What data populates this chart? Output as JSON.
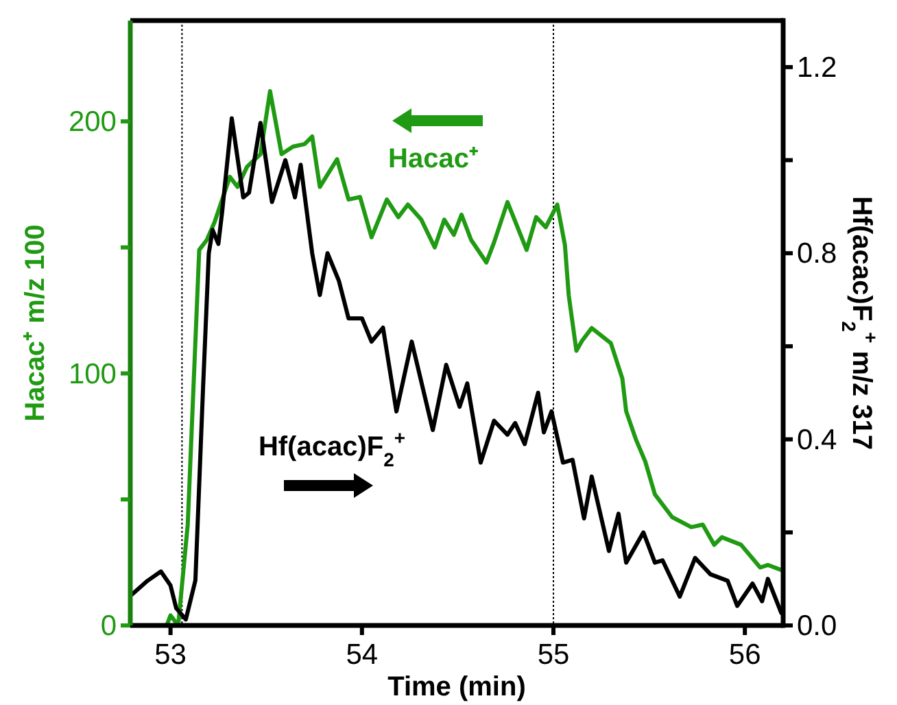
{
  "chart_data": {
    "type": "line",
    "xlabel": "Time (min)",
    "ylabel": "Hacac⁺ m/z 100",
    "y2label": "Hf(acac)F$_{2}$$^{+}$ m/z 317",
    "xlim": [
      52.79,
      56.2
    ],
    "xticks": [
      53,
      54,
      55,
      56
    ],
    "ylim": [
      0,
      240
    ],
    "yticks": [
      0,
      {
        "value": 50,
        "label": null
      },
      100,
      {
        "value": 150,
        "label": null
      },
      200
    ],
    "y2lim": [
      0,
      1.3
    ],
    "y2ticks": [
      {
        "value": 0,
        "label": "0.0"
      },
      {
        "value": 0.2,
        "label": null
      },
      {
        "value": 0.4,
        "label": "0.4"
      },
      {
        "value": 0.6,
        "label": null
      },
      {
        "value": 0.8,
        "label": "0.8"
      },
      {
        "value": 1.0,
        "label": null
      },
      {
        "value": 1.2,
        "label": "1.2"
      }
    ],
    "grid": false,
    "line_style": "solid",
    "marker": "none",
    "ref_lines": [
      {
        "axis": "x",
        "value": 53.06,
        "color": "#000000",
        "line_style": "dotted"
      },
      {
        "axis": "x",
        "value": 55.0,
        "color": "#000000",
        "line_style": "dotted"
      }
    ],
    "annotations": [
      "Hacac⁺",
      "Hf(acac)F$_{2}$$^{+}$"
    ],
    "series": [
      {
        "color": "#1f9a12",
        "axis": "y",
        "x": [
          52.79,
          52.98,
          53.0,
          53.04,
          53.09,
          53.15,
          53.19,
          53.23,
          53.31,
          53.35,
          53.4,
          53.47,
          53.52,
          53.58,
          53.64,
          53.7,
          53.74,
          53.78,
          53.87,
          53.93,
          53.99,
          54.05,
          54.13,
          54.19,
          54.24,
          54.31,
          54.38,
          54.43,
          54.48,
          54.52,
          54.57,
          54.65,
          54.69,
          54.76,
          54.86,
          54.91,
          54.96,
          55.02,
          55.06,
          55.08,
          55.12,
          55.15,
          55.2,
          55.3,
          55.36,
          55.38,
          55.43,
          55.48,
          55.53,
          55.62,
          55.72,
          55.78,
          55.84,
          55.88,
          55.98,
          56.08,
          56.12,
          56.19
        ],
        "values": [
          0,
          0,
          4,
          0,
          40,
          149,
          153,
          160,
          178,
          174,
          182,
          187,
          212,
          187,
          190,
          191,
          194,
          174,
          185,
          169,
          170,
          154,
          169,
          162,
          167,
          161,
          150,
          161,
          155,
          163,
          153,
          144,
          152,
          168,
          149,
          162,
          158,
          167,
          151,
          131,
          109,
          113,
          118,
          112,
          98,
          85,
          74,
          65,
          52,
          43,
          39,
          40,
          32,
          35,
          32,
          23,
          24,
          22
        ]
      },
      {
        "color": "#000000",
        "axis": "y2",
        "x": [
          52.8,
          52.88,
          52.95,
          53.0,
          53.03,
          53.08,
          53.13,
          53.17,
          53.2,
          53.22,
          53.25,
          53.27,
          53.32,
          53.38,
          53.41,
          53.47,
          53.53,
          53.6,
          53.65,
          53.68,
          53.74,
          53.78,
          53.82,
          53.88,
          53.93,
          54.0,
          54.05,
          54.11,
          54.18,
          54.26,
          54.37,
          54.44,
          54.51,
          54.55,
          54.62,
          54.69,
          54.76,
          54.8,
          54.85,
          54.92,
          54.95,
          54.99,
          55.05,
          55.1,
          55.16,
          55.2,
          55.29,
          55.34,
          55.38,
          55.47,
          55.53,
          55.57,
          55.66,
          55.74,
          55.82,
          55.91,
          55.96,
          56.04,
          56.09,
          56.12,
          56.19
        ],
        "values": [
          0.067,
          0.096,
          0.116,
          0.086,
          0.037,
          0.013,
          0.097,
          0.51,
          0.8,
          0.85,
          0.82,
          0.89,
          1.09,
          0.92,
          0.93,
          1.08,
          0.91,
          1.0,
          0.92,
          0.99,
          0.8,
          0.71,
          0.8,
          0.74,
          0.66,
          0.66,
          0.61,
          0.64,
          0.46,
          0.61,
          0.42,
          0.56,
          0.47,
          0.52,
          0.35,
          0.44,
          0.41,
          0.435,
          0.39,
          0.5,
          0.415,
          0.46,
          0.35,
          0.356,
          0.23,
          0.32,
          0.16,
          0.24,
          0.135,
          0.2,
          0.135,
          0.14,
          0.062,
          0.145,
          0.11,
          0.096,
          0.042,
          0.09,
          0.052,
          0.1,
          0.027
        ]
      }
    ]
  }
}
